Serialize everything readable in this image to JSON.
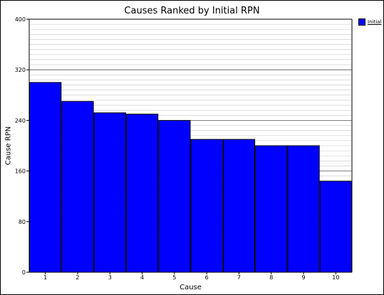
{
  "chart_data": {
    "type": "bar",
    "title": "Causes Ranked by Initial RPN",
    "xlabel": "Cause",
    "ylabel": "Cause RPN",
    "categories": [
      "1",
      "2",
      "3",
      "4",
      "5",
      "6",
      "7",
      "8",
      "9",
      "10"
    ],
    "series": [
      {
        "name": "Initial",
        "values": [
          300,
          270,
          252,
          250,
          240,
          210,
          210,
          200,
          200,
          144
        ]
      }
    ],
    "ylim": [
      0,
      400
    ],
    "yticks": [
      0,
      80,
      160,
      240,
      320,
      400
    ],
    "grid": true,
    "legend_position": "top-right",
    "colors": {
      "bar": "#0000ff",
      "bar_border": "#000000",
      "major_grid": "#555555",
      "minor_grid": "#c8c8c8"
    }
  }
}
